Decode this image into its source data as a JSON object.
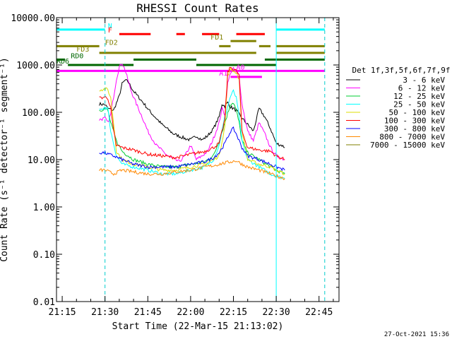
{
  "chart_data": {
    "type": "line",
    "title": "RHESSI Count Rates",
    "xlabel": "Start Time (22-Mar-15 21:13:02)",
    "ylabel": "Count Rate (s⁻¹ detector⁻¹ segment⁻¹)",
    "footer": "27-Oct-2021 15:36",
    "yscale": "log",
    "xlim": [
      "21:13",
      "22:52"
    ],
    "ylim": [
      0.01,
      10000
    ],
    "xticks": [
      "21:15",
      "21:30",
      "21:45",
      "22:00",
      "22:15",
      "22:30",
      "22:45"
    ],
    "yticks": [
      "0.01",
      "0.10",
      "1.00",
      "10.00",
      "100.00",
      "1000.00",
      "10000.00"
    ],
    "legend_title": "Det 1f,3f,5f,6f,7f,9f",
    "legend_position": "right",
    "series": [
      {
        "name": "3 - 6 keV",
        "color": "#000000",
        "points": [
          [
            "21:28",
            150
          ],
          [
            "21:30",
            145
          ],
          [
            "21:31",
            120
          ],
          [
            "21:33",
            110
          ],
          [
            "21:35",
            220
          ],
          [
            "21:36",
            400
          ],
          [
            "21:37",
            470
          ],
          [
            "21:38",
            450
          ],
          [
            "21:40",
            280
          ],
          [
            "21:43",
            170
          ],
          [
            "21:46",
            100
          ],
          [
            "21:50",
            55
          ],
          [
            "21:54",
            35
          ],
          [
            "21:58",
            28
          ],
          [
            "22:00",
            26
          ],
          [
            "22:02",
            32
          ],
          [
            "22:04",
            26
          ],
          [
            "22:06",
            32
          ],
          [
            "22:08",
            45
          ],
          [
            "22:10",
            80
          ],
          [
            "22:11",
            150
          ],
          [
            "22:12",
            135
          ],
          [
            "22:13",
            160
          ],
          [
            "22:14",
            130
          ],
          [
            "22:15",
            120
          ],
          [
            "22:16",
            110
          ],
          [
            "22:18",
            75
          ],
          [
            "22:20",
            55
          ],
          [
            "22:22",
            40
          ],
          [
            "22:24",
            120
          ],
          [
            "22:26",
            80
          ],
          [
            "22:28",
            45
          ],
          [
            "22:30",
            22
          ],
          [
            "22:32",
            20
          ],
          [
            "22:33",
            18
          ]
        ]
      },
      {
        "name": "6 - 12 keV",
        "color": "#ff00ff",
        "points": [
          [
            "21:28",
            70
          ],
          [
            "21:30",
            75
          ],
          [
            "21:31",
            60
          ],
          [
            "21:32",
            90
          ],
          [
            "21:34",
            500
          ],
          [
            "21:35",
            900
          ],
          [
            "21:36",
            1100
          ],
          [
            "21:37",
            800
          ],
          [
            "21:39",
            300
          ],
          [
            "21:41",
            150
          ],
          [
            "21:43",
            80
          ],
          [
            "21:45",
            40
          ],
          [
            "21:48",
            20
          ],
          [
            "21:52",
            12
          ],
          [
            "21:56",
            9
          ],
          [
            "21:58",
            12
          ],
          [
            "22:00",
            20
          ],
          [
            "22:02",
            10
          ],
          [
            "22:04",
            12
          ],
          [
            "22:06",
            15
          ],
          [
            "22:08",
            28
          ],
          [
            "22:10",
            60
          ],
          [
            "22:11",
            120
          ],
          [
            "22:12",
            90
          ],
          [
            "22:13",
            400
          ],
          [
            "22:14",
            700
          ],
          [
            "22:15",
            820
          ],
          [
            "22:16",
            750
          ],
          [
            "22:17",
            600
          ],
          [
            "22:18",
            150
          ],
          [
            "22:20",
            40
          ],
          [
            "22:22",
            25
          ],
          [
            "22:24",
            60
          ],
          [
            "22:26",
            35
          ],
          [
            "22:28",
            18
          ],
          [
            "22:30",
            12
          ],
          [
            "22:33",
            10
          ]
        ]
      },
      {
        "name": "12 - 25 keV",
        "color": "#00cc33",
        "points": [
          [
            "21:28",
            110
          ],
          [
            "21:30",
            120
          ],
          [
            "21:31",
            110
          ],
          [
            "21:32",
            60
          ],
          [
            "21:34",
            25
          ],
          [
            "21:36",
            15
          ],
          [
            "21:40",
            10
          ],
          [
            "21:45",
            8
          ],
          [
            "21:50",
            7
          ],
          [
            "21:55",
            7
          ],
          [
            "22:00",
            8
          ],
          [
            "22:05",
            9
          ],
          [
            "22:08",
            12
          ],
          [
            "22:10",
            25
          ],
          [
            "22:12",
            60
          ],
          [
            "22:14",
            150
          ],
          [
            "22:15",
            160
          ],
          [
            "22:16",
            110
          ],
          [
            "22:17",
            60
          ],
          [
            "22:18",
            25
          ],
          [
            "22:20",
            14
          ],
          [
            "22:24",
            10
          ],
          [
            "22:28",
            7
          ],
          [
            "22:30",
            6
          ],
          [
            "22:33",
            5
          ]
        ]
      },
      {
        "name": "25 - 50 keV",
        "color": "#00ffff",
        "points": [
          [
            "21:28",
            110
          ],
          [
            "21:30",
            130
          ],
          [
            "21:31",
            120
          ],
          [
            "21:32",
            40
          ],
          [
            "21:34",
            12
          ],
          [
            "21:36",
            8
          ],
          [
            "21:40",
            7
          ],
          [
            "21:45",
            6
          ],
          [
            "21:50",
            5
          ],
          [
            "21:55",
            5
          ],
          [
            "22:00",
            6
          ],
          [
            "22:05",
            7
          ],
          [
            "22:08",
            10
          ],
          [
            "22:10",
            20
          ],
          [
            "22:12",
            80
          ],
          [
            "22:14",
            220
          ],
          [
            "22:15",
            280
          ],
          [
            "22:16",
            200
          ],
          [
            "22:17",
            80
          ],
          [
            "22:18",
            25
          ],
          [
            "22:20",
            10
          ],
          [
            "22:24",
            7
          ],
          [
            "22:28",
            5
          ],
          [
            "22:30",
            4.5
          ],
          [
            "22:33",
            4
          ]
        ]
      },
      {
        "name": "50 - 100 keV",
        "color": "#dddd00",
        "points": [
          [
            "21:28",
            300
          ],
          [
            "21:30",
            310
          ],
          [
            "21:31",
            300
          ],
          [
            "21:32",
            200
          ],
          [
            "21:33",
            60
          ],
          [
            "21:34",
            15
          ],
          [
            "21:36",
            10
          ],
          [
            "21:40",
            8
          ],
          [
            "21:45",
            7
          ],
          [
            "21:50",
            6
          ],
          [
            "21:55",
            6
          ],
          [
            "22:00",
            7
          ],
          [
            "22:05",
            8
          ],
          [
            "22:08",
            10
          ],
          [
            "22:10",
            12
          ],
          [
            "22:12",
            50
          ],
          [
            "22:13",
            600
          ],
          [
            "22:14",
            800
          ],
          [
            "22:16",
            700
          ],
          [
            "22:17",
            500
          ],
          [
            "22:18",
            40
          ],
          [
            "22:20",
            10
          ],
          [
            "22:24",
            8
          ],
          [
            "22:28",
            7
          ],
          [
            "22:30",
            6
          ],
          [
            "22:33",
            5
          ]
        ]
      },
      {
        "name": "100 - 300 keV",
        "color": "#ff0000",
        "points": [
          [
            "21:28",
            200
          ],
          [
            "21:30",
            210
          ],
          [
            "21:31",
            200
          ],
          [
            "21:32",
            120
          ],
          [
            "21:33",
            40
          ],
          [
            "21:34",
            20
          ],
          [
            "21:36",
            18
          ],
          [
            "21:40",
            16
          ],
          [
            "21:45",
            13
          ],
          [
            "21:50",
            12
          ],
          [
            "21:55",
            11
          ],
          [
            "22:00",
            13
          ],
          [
            "22:05",
            15
          ],
          [
            "22:08",
            18
          ],
          [
            "22:10",
            22
          ],
          [
            "22:12",
            70
          ],
          [
            "22:13",
            700
          ],
          [
            "22:14",
            900
          ],
          [
            "22:16",
            750
          ],
          [
            "22:17",
            600
          ],
          [
            "22:18",
            40
          ],
          [
            "22:20",
            18
          ],
          [
            "22:24",
            16
          ],
          [
            "22:28",
            15
          ],
          [
            "22:30",
            12
          ],
          [
            "22:33",
            10
          ]
        ]
      },
      {
        "name": "300 - 800 keV",
        "color": "#0000ff",
        "points": [
          [
            "21:28",
            14
          ],
          [
            "21:30",
            14
          ],
          [
            "21:31",
            13
          ],
          [
            "21:33",
            12
          ],
          [
            "21:36",
            10
          ],
          [
            "21:40",
            8
          ],
          [
            "21:45",
            7
          ],
          [
            "21:50",
            7
          ],
          [
            "21:55",
            7
          ],
          [
            "22:00",
            8
          ],
          [
            "22:05",
            9
          ],
          [
            "22:08",
            11
          ],
          [
            "22:10",
            14
          ],
          [
            "22:12",
            22
          ],
          [
            "22:14",
            40
          ],
          [
            "22:15",
            45
          ],
          [
            "22:16",
            35
          ],
          [
            "22:18",
            18
          ],
          [
            "22:20",
            12
          ],
          [
            "22:24",
            10
          ],
          [
            "22:28",
            8
          ],
          [
            "22:30",
            7
          ],
          [
            "22:33",
            6
          ]
        ]
      },
      {
        "name": "800 - 7000 keV",
        "color": "#ff8800",
        "points": [
          [
            "21:28",
            6
          ],
          [
            "21:30",
            6
          ],
          [
            "21:33",
            5
          ],
          [
            "21:36",
            6
          ],
          [
            "21:40",
            5.5
          ],
          [
            "21:45",
            5
          ],
          [
            "21:50",
            5
          ],
          [
            "21:55",
            5.5
          ],
          [
            "22:00",
            6
          ],
          [
            "22:05",
            7
          ],
          [
            "22:08",
            7.5
          ],
          [
            "22:10",
            8
          ],
          [
            "22:14",
            9
          ],
          [
            "22:16",
            9.5
          ],
          [
            "22:18",
            8
          ],
          [
            "22:20",
            7
          ],
          [
            "22:24",
            6
          ],
          [
            "22:28",
            5
          ],
          [
            "22:30",
            4.5
          ],
          [
            "22:33",
            4
          ]
        ]
      },
      {
        "name": "7000 - 15000 keV",
        "color": "#808000",
        "points": []
      }
    ],
    "vlines": [
      {
        "x": "21:13",
        "color": "#00ffff",
        "style": "solid"
      },
      {
        "x": "21:30",
        "color": "#00cccc",
        "style": "dashed"
      },
      {
        "x": "22:30",
        "color": "#00ffff",
        "style": "solid"
      },
      {
        "x": "22:47",
        "color": "#00cccc",
        "style": "dashed"
      }
    ],
    "flags": [
      {
        "label": "N",
        "color": "#00ffff",
        "level": 5600,
        "segments": [
          [
            "21:13",
            "21:30"
          ],
          [
            "22:30",
            "22:47"
          ]
        ],
        "label_at": "21:31"
      },
      {
        "label": "F",
        "color": "#ff0000",
        "level": 4500,
        "segments": [
          [
            "21:35",
            "21:46"
          ],
          [
            "21:55",
            "21:58"
          ],
          [
            "22:04",
            "22:10"
          ],
          [
            "22:16",
            "22:26"
          ]
        ],
        "label_at": "21:31"
      },
      {
        "label": "FD1",
        "color": "#808000",
        "level": 3200,
        "segments": [
          [
            "22:14",
            "22:23"
          ]
        ],
        "label_at": "22:07"
      },
      {
        "label": "FD2",
        "color": "#808000",
        "level": 2500,
        "segments": [
          [
            "21:13",
            "21:28"
          ],
          [
            "22:10",
            "22:14"
          ],
          [
            "22:24",
            "22:28"
          ],
          [
            "22:30",
            "22:47"
          ]
        ],
        "label_at": "21:30"
      },
      {
        "label": "FD3",
        "color": "#808000",
        "level": 1800,
        "segments": [
          [
            "21:28",
            "22:23"
          ],
          [
            "22:30",
            "22:47"
          ]
        ],
        "label_at": "21:20"
      },
      {
        "label": "RD0",
        "color": "#006600",
        "level": 1300,
        "segments": [
          [
            "21:13",
            "21:16"
          ],
          [
            "21:40",
            "22:02"
          ],
          [
            "22:26",
            "22:47"
          ]
        ],
        "label_at": "21:18"
      },
      {
        "label": "RD6",
        "color": "#006600",
        "level": 1000,
        "segments": [
          [
            "21:17",
            "21:40"
          ],
          [
            "22:02",
            "22:30"
          ]
        ],
        "label_at": "21:13"
      },
      {
        "label": "A0",
        "color": "#ff00ff",
        "level": 750,
        "segments": [
          [
            "21:13",
            "22:47"
          ]
        ],
        "label_at": "22:16"
      },
      {
        "label": "A1",
        "color": "#ff00ff",
        "level": 560,
        "segments": [
          [
            "22:14",
            "22:25"
          ]
        ],
        "label_at": "22:10"
      }
    ]
  }
}
